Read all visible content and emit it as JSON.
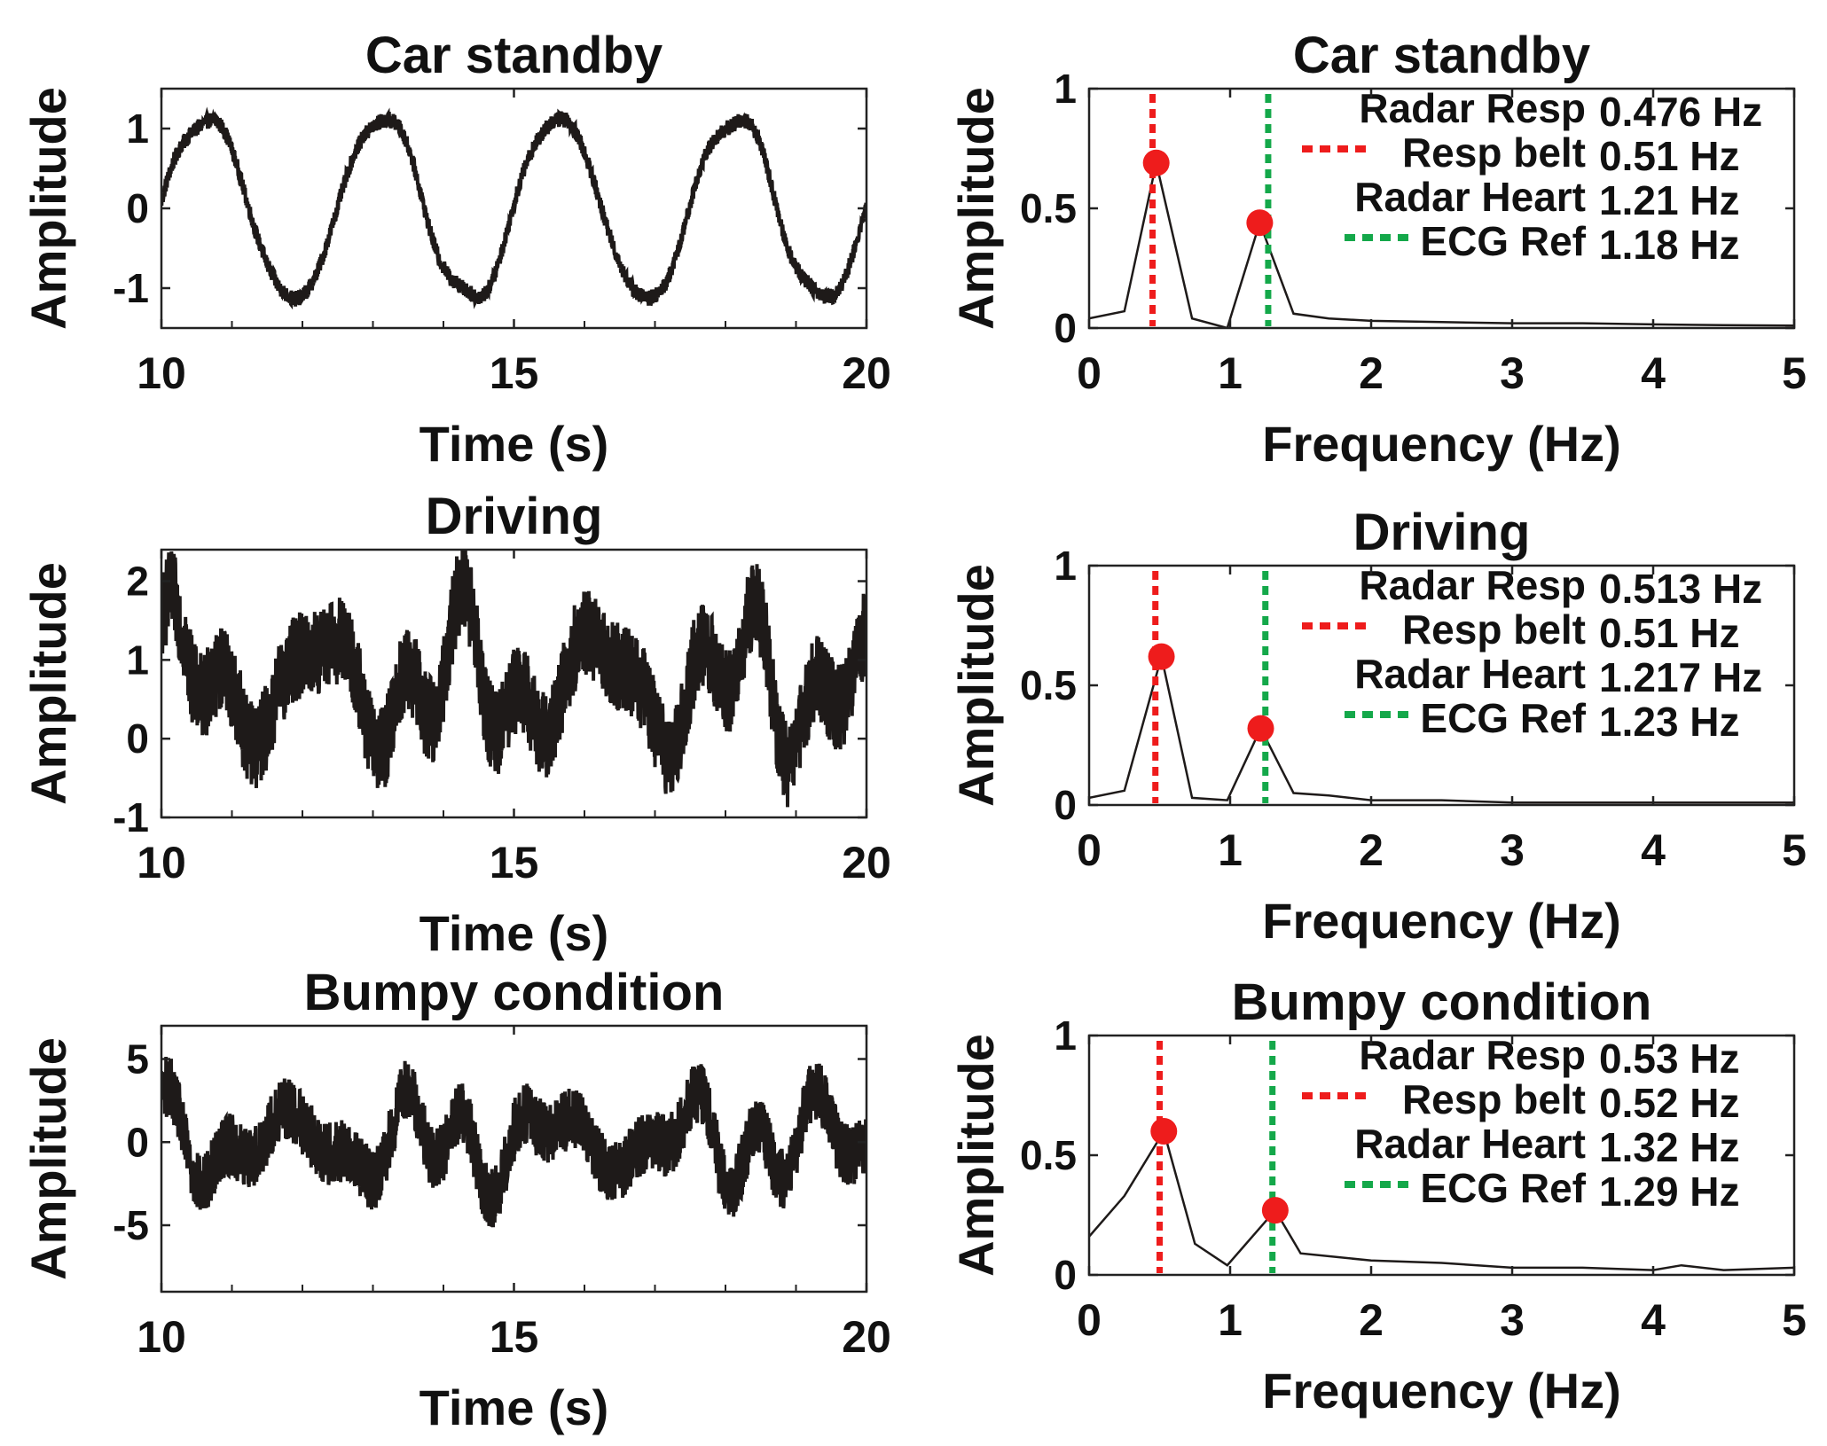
{
  "colors": {
    "signal": "#1e1a19",
    "resp": "#ee1c1c",
    "heart": "#14a84a",
    "peak": "#ee1c1c",
    "axis": "#222222"
  },
  "chart_data": [
    {
      "type": "line",
      "id": "time-standby",
      "title": "Car standby",
      "xlabel": "Time (s)",
      "ylabel": "Amplitude",
      "xlim": [
        10,
        20
      ],
      "ylim": [
        -1.5,
        1.5
      ],
      "xticks": [
        10,
        15,
        20
      ],
      "xtick_labels": [
        "10",
        "15",
        "20"
      ],
      "yticks": [
        1,
        0,
        -1
      ],
      "ytick_labels": [
        "1",
        "0",
        "-1"
      ],
      "signal": {
        "resp_freq_hz": 0.4,
        "resp_amp": 1.15,
        "noise_amp": 0.22,
        "trend": [
          [
            10,
            0.0
          ],
          [
            20,
            0.0
          ]
        ]
      }
    },
    {
      "type": "line",
      "id": "spectrum-standby",
      "title": "Car standby",
      "xlabel": "Frequency (Hz)",
      "ylabel": "Amplitude",
      "xlim": [
        0,
        5
      ],
      "ylim": [
        0,
        1
      ],
      "xticks": [
        0,
        1,
        2,
        3,
        4,
        5
      ],
      "xtick_labels": [
        "0",
        "1",
        "2",
        "3",
        "4",
        "5"
      ],
      "yticks": [
        1,
        0.5,
        0
      ],
      "ytick_labels": [
        "1",
        "0.5",
        "0"
      ],
      "x": [
        0,
        0.25,
        0.476,
        0.73,
        0.98,
        1.21,
        1.45,
        1.7,
        2.0,
        2.5,
        3.0,
        3.5,
        4.0,
        4.5,
        5.0
      ],
      "y": [
        0.04,
        0.07,
        0.69,
        0.04,
        0.0,
        0.44,
        0.06,
        0.04,
        0.03,
        0.025,
        0.02,
        0.02,
        0.015,
        0.012,
        0.01
      ],
      "peaks": [
        {
          "x": 0.476,
          "y": 0.69
        },
        {
          "x": 1.21,
          "y": 0.44
        }
      ],
      "resp_line_x": 0.45,
      "heart_line_x": 1.27,
      "labels": {
        "radar_resp": "Radar Resp",
        "radar_resp_val": "0.476 Hz",
        "resp_belt": "Resp belt",
        "resp_belt_val": "0.51 Hz",
        "radar_heart": "Radar Heart",
        "radar_heart_val": "1.21 Hz",
        "ecg_ref": "ECG Ref",
        "ecg_ref_val": "1.18 Hz"
      }
    },
    {
      "type": "line",
      "id": "time-driving",
      "title": "Driving",
      "xlabel": "Time (s)",
      "ylabel": "Amplitude",
      "xlim": [
        10,
        20
      ],
      "ylim": [
        -1,
        2.4
      ],
      "xticks": [
        10,
        15,
        20
      ],
      "xtick_labels": [
        "10",
        "15",
        "20"
      ],
      "yticks": [
        2,
        1,
        0,
        -1
      ],
      "ytick_labels": [
        "2",
        "1",
        "0",
        "-1"
      ],
      "signal": {
        "resp_freq_hz": 0.51,
        "resp_amp": 0.55,
        "noise_amp": 1.25,
        "trend": [
          [
            10,
            0.7
          ],
          [
            20,
            0.7
          ]
        ]
      }
    },
    {
      "type": "line",
      "id": "spectrum-driving",
      "title": "Driving",
      "xlabel": "Frequency (Hz)",
      "ylabel": "Amplitude",
      "xlim": [
        0,
        5
      ],
      "ylim": [
        0,
        1
      ],
      "xticks": [
        0,
        1,
        2,
        3,
        4,
        5
      ],
      "xtick_labels": [
        "0",
        "1",
        "2",
        "3",
        "4",
        "5"
      ],
      "yticks": [
        1,
        0.5,
        0
      ],
      "ytick_labels": [
        "1",
        "0.5",
        "0"
      ],
      "x": [
        0,
        0.25,
        0.513,
        0.73,
        0.98,
        1.217,
        1.45,
        1.7,
        2.0,
        2.5,
        3.0,
        3.5,
        4.0,
        4.5,
        5.0
      ],
      "y": [
        0.03,
        0.06,
        0.62,
        0.03,
        0.02,
        0.32,
        0.05,
        0.04,
        0.02,
        0.02,
        0.01,
        0.01,
        0.01,
        0.01,
        0.01
      ],
      "peaks": [
        {
          "x": 0.513,
          "y": 0.62
        },
        {
          "x": 1.217,
          "y": 0.32
        }
      ],
      "resp_line_x": 0.47,
      "heart_line_x": 1.25,
      "labels": {
        "radar_resp": "Radar Resp",
        "radar_resp_val": "0.513 Hz",
        "resp_belt": "Resp belt",
        "resp_belt_val": "0.51 Hz",
        "radar_heart": "Radar Heart",
        "radar_heart_val": "1.217 Hz",
        "ecg_ref": "ECG Ref",
        "ecg_ref_val": "1.23 Hz"
      }
    },
    {
      "type": "line",
      "id": "time-bumpy",
      "title": "Bumpy condition",
      "xlabel": "Time (s)",
      "ylabel": "Amplitude",
      "xlim": [
        10,
        20
      ],
      "ylim": [
        -9,
        7
      ],
      "xticks": [
        10,
        15,
        20
      ],
      "xtick_labels": [
        "10",
        "15",
        "20"
      ],
      "yticks": [
        5,
        0,
        -5
      ],
      "ytick_labels": [
        "5",
        "0",
        "-5"
      ],
      "signal": {
        "resp_freq_hz": 0.53,
        "resp_amp": 1.5,
        "noise_amp": 4.2,
        "trend": [
          [
            10,
            0.0
          ],
          [
            20,
            0.0
          ]
        ]
      }
    },
    {
      "type": "line",
      "id": "spectrum-bumpy",
      "title": "Bumpy condition",
      "xlabel": "Frequency (Hz)",
      "ylabel": "Amplitude",
      "xlim": [
        0,
        5
      ],
      "ylim": [
        0,
        1
      ],
      "xticks": [
        0,
        1,
        2,
        3,
        4,
        5
      ],
      "xtick_labels": [
        "0",
        "1",
        "2",
        "3",
        "4",
        "5"
      ],
      "yticks": [
        1,
        0.5,
        0
      ],
      "ytick_labels": [
        "1",
        "0.5",
        "0"
      ],
      "x": [
        0,
        0.25,
        0.53,
        0.75,
        0.98,
        1.32,
        1.5,
        2.0,
        2.5,
        3.0,
        3.5,
        4.0,
        4.2,
        4.5,
        5.0
      ],
      "y": [
        0.16,
        0.33,
        0.6,
        0.13,
        0.04,
        0.27,
        0.09,
        0.06,
        0.05,
        0.03,
        0.03,
        0.02,
        0.04,
        0.02,
        0.03
      ],
      "peaks": [
        {
          "x": 0.53,
          "y": 0.6
        },
        {
          "x": 1.32,
          "y": 0.27
        }
      ],
      "resp_line_x": 0.5,
      "heart_line_x": 1.3,
      "labels": {
        "radar_resp": "Radar Resp",
        "radar_resp_val": "0.53 Hz",
        "resp_belt": "Resp belt",
        "resp_belt_val": "0.52 Hz",
        "radar_heart": "Radar Heart",
        "radar_heart_val": "1.32 Hz",
        "ecg_ref": "ECG Ref",
        "ecg_ref_val": "1.29 Hz"
      }
    }
  ]
}
